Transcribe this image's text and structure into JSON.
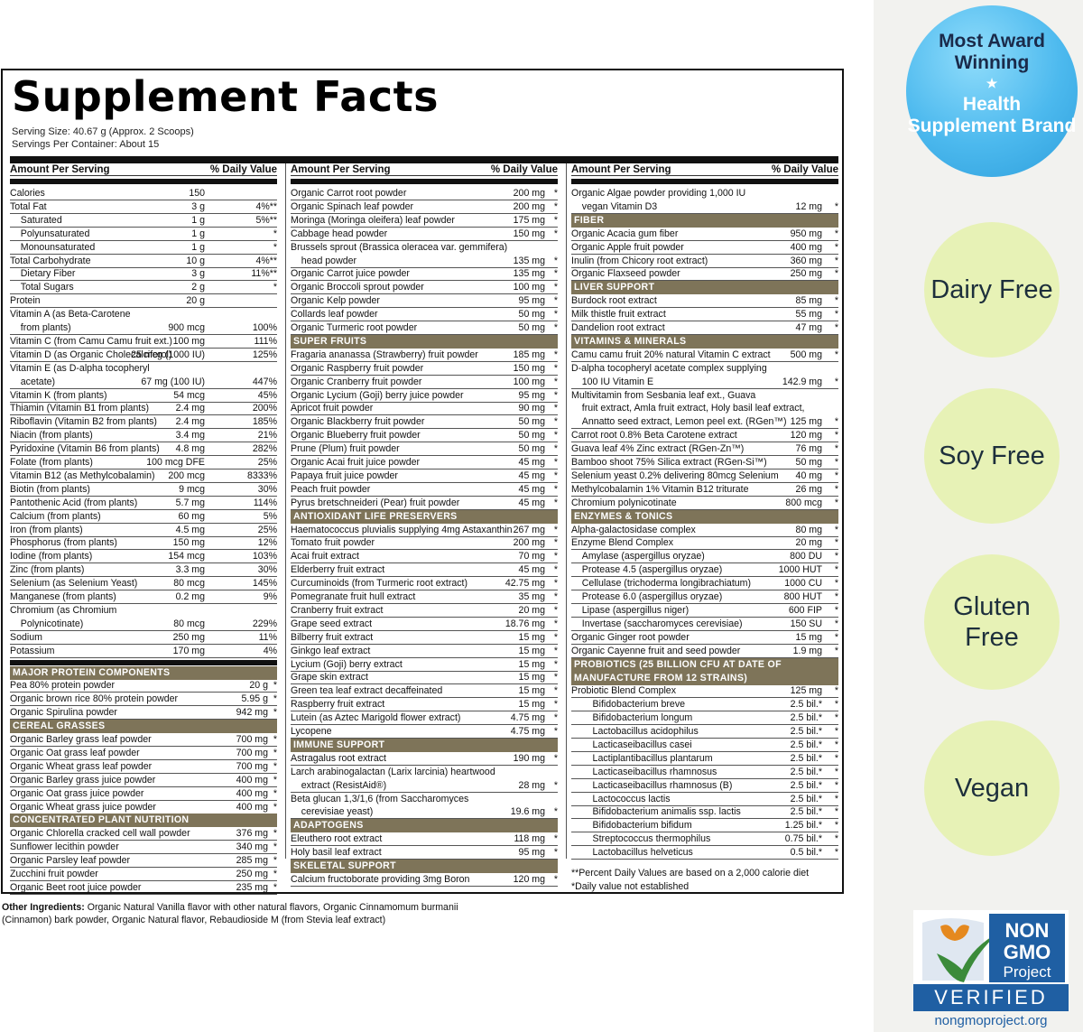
{
  "title": "Supplement Facts",
  "serving_size": "Serving Size: 40.67 g (Approx. 2 Scoops)",
  "servings_per_container": "Servings Per Container: About 15",
  "column_headers": {
    "amount": "Amount Per Serving",
    "dv": "% Daily Value"
  },
  "col1": [
    {
      "n": "Calories",
      "a": "150",
      "d": ""
    },
    {
      "n": "Total Fat",
      "a": "3 g",
      "d": "4%**"
    },
    {
      "n": "  Saturated",
      "a": "1 g",
      "d": "5%**"
    },
    {
      "n": "  Polyunsaturated",
      "a": "1 g",
      "d": "*"
    },
    {
      "n": "  Monounsaturated",
      "a": "1 g",
      "d": "*"
    },
    {
      "n": "Total Carbohydrate",
      "a": "10 g",
      "d": "4%**"
    },
    {
      "n": "  Dietary Fiber",
      "a": "3 g",
      "d": "11%**"
    },
    {
      "n": "  Total Sugars",
      "a": "2 g",
      "d": "*"
    },
    {
      "n": "Protein",
      "a": "20 g",
      "d": ""
    },
    {
      "n": "Vitamin A (as Beta-Carotene",
      "a": "",
      "d": "",
      "cont": true
    },
    {
      "n": "  from plants)",
      "a": "900 mcg",
      "d": "100%"
    },
    {
      "n": "Vitamin C (from Camu Camu fruit ext.)",
      "a": "100 mg",
      "d": "111%"
    },
    {
      "n": "Vitamin D (as Organic Cholecalciferol)",
      "a": "25 mcg (1000 IU)",
      "d": "125%"
    },
    {
      "n": "Vitamin E (as D-alpha tocopheryl",
      "a": "",
      "d": "",
      "cont": true
    },
    {
      "n": "  acetate)",
      "a": "67 mg (100 IU)",
      "d": "447%"
    },
    {
      "n": "Vitamin K (from plants)",
      "a": "54 mcg",
      "d": "45%"
    },
    {
      "n": "Thiamin (Vitamin B1 from plants)",
      "a": "2.4 mg",
      "d": "200%"
    },
    {
      "n": "Riboflavin (Vitamin B2 from plants)",
      "a": "2.4 mg",
      "d": "185%"
    },
    {
      "n": "Niacin (from plants)",
      "a": "3.4 mg",
      "d": "21%"
    },
    {
      "n": "Pyridoxine (Vitamin B6 from plants)",
      "a": "4.8 mg",
      "d": "282%"
    },
    {
      "n": "Folate (from plants)",
      "a": "100 mcg DFE",
      "d": "25%"
    },
    {
      "n": "Vitamin B12 (as Methylcobalamin)",
      "a": "200 mcg",
      "d": "8333%"
    },
    {
      "n": "Biotin (from plants)",
      "a": "9 mcg",
      "d": "30%"
    },
    {
      "n": "Pantothenic Acid (from plants)",
      "a": "5.7 mg",
      "d": "114%"
    },
    {
      "n": "Calcium (from plants)",
      "a": "60 mg",
      "d": "5%"
    },
    {
      "n": "Iron (from plants)",
      "a": "4.5 mg",
      "d": "25%"
    },
    {
      "n": "Phosphorus (from plants)",
      "a": "150 mg",
      "d": "12%"
    },
    {
      "n": "Iodine (from plants)",
      "a": "154 mcg",
      "d": "103%"
    },
    {
      "n": "Zinc (from plants)",
      "a": "3.3 mg",
      "d": "30%"
    },
    {
      "n": "Selenium (as Selenium Yeast)",
      "a": "80 mcg",
      "d": "145%"
    },
    {
      "n": "Manganese (from plants)",
      "a": "0.2 mg",
      "d": "9%"
    },
    {
      "n": "Chromium (as Chromium",
      "a": "",
      "d": "",
      "cont": true
    },
    {
      "n": "  Polynicotinate)",
      "a": "80 mcg",
      "d": "229%"
    },
    {
      "n": "Sodium",
      "a": "250 mg",
      "d": "11%"
    },
    {
      "n": "Potassium",
      "a": "170 mg",
      "d": "4%"
    }
  ],
  "col1b": [
    {
      "sec": "MAJOR PROTEIN COMPONENTS"
    },
    {
      "n": "Pea 80% protein powder",
      "a": "20 g",
      "d": "*"
    },
    {
      "n": "Organic brown rice 80% protein powder",
      "a": "5.95 g",
      "d": "*"
    },
    {
      "n": "Organic Spirulina powder",
      "a": "942 mg",
      "d": "*"
    },
    {
      "sec": "CEREAL GRASSES"
    },
    {
      "n": "Organic Barley grass leaf powder",
      "a": "700 mg",
      "d": "*"
    },
    {
      "n": "Organic Oat grass leaf powder",
      "a": "700 mg",
      "d": "*"
    },
    {
      "n": "Organic Wheat grass leaf powder",
      "a": "700 mg",
      "d": "*"
    },
    {
      "n": "Organic Barley grass juice powder",
      "a": "400 mg",
      "d": "*"
    },
    {
      "n": "Organic Oat grass juice powder",
      "a": "400 mg",
      "d": "*"
    },
    {
      "n": "Organic Wheat grass juice powder",
      "a": "400 mg",
      "d": "*"
    },
    {
      "sec": "CONCENTRATED PLANT NUTRITION"
    },
    {
      "n": "Organic Chlorella cracked cell wall powder",
      "a": "376 mg",
      "d": "*"
    },
    {
      "n": "Sunflower lecithin powder",
      "a": "340 mg",
      "d": "*"
    },
    {
      "n": "Organic Parsley leaf powder",
      "a": "285 mg",
      "d": "*"
    },
    {
      "n": "Zucchini fruit powder",
      "a": "250 mg",
      "d": "*"
    },
    {
      "n": "Organic Beet root juice powder",
      "a": "235 mg",
      "d": "*"
    }
  ],
  "col2": [
    {
      "n": "Organic Carrot root powder",
      "a": "200 mg",
      "d": "*"
    },
    {
      "n": "Organic Spinach leaf powder",
      "a": "200 mg",
      "d": "*"
    },
    {
      "n": "Moringa (Moringa oleifera) leaf powder",
      "a": "175 mg",
      "d": "*"
    },
    {
      "n": "Cabbage head powder",
      "a": "150 mg",
      "d": "*"
    },
    {
      "n": "Brussels sprout (Brassica oleracea var. gemmifera)",
      "a": "",
      "d": "",
      "cont": true
    },
    {
      "n": "  head powder",
      "a": "135 mg",
      "d": "*"
    },
    {
      "n": "Organic Carrot juice powder",
      "a": "135 mg",
      "d": "*"
    },
    {
      "n": "Organic Broccoli sprout powder",
      "a": "100 mg",
      "d": "*"
    },
    {
      "n": "Organic Kelp powder",
      "a": "95 mg",
      "d": "*"
    },
    {
      "n": "Collards leaf powder",
      "a": "50 mg",
      "d": "*"
    },
    {
      "n": "Organic Turmeric root powder",
      "a": "50 mg",
      "d": "*"
    },
    {
      "sec": "SUPER FRUITS"
    },
    {
      "n": "Fragaria ananassa (Strawberry) fruit powder",
      "a": "185 mg",
      "d": "*"
    },
    {
      "n": "Organic Raspberry fruit powder",
      "a": "150 mg",
      "d": "*"
    },
    {
      "n": "Organic Cranberry fruit powder",
      "a": "100 mg",
      "d": "*"
    },
    {
      "n": "Organic Lycium (Goji) berry juice powder",
      "a": "95 mg",
      "d": "*"
    },
    {
      "n": "Apricot fruit powder",
      "a": "90 mg",
      "d": "*"
    },
    {
      "n": "Organic Blackberry fruit powder",
      "a": "50 mg",
      "d": "*"
    },
    {
      "n": "Organic Blueberry fruit powder",
      "a": "50 mg",
      "d": "*"
    },
    {
      "n": "Prune (Plum) fruit powder",
      "a": "50 mg",
      "d": "*"
    },
    {
      "n": "Organic Acai fruit juice powder",
      "a": "45 mg",
      "d": "*"
    },
    {
      "n": "Papaya fruit juice powder",
      "a": "45 mg",
      "d": "*"
    },
    {
      "n": "Peach fruit powder",
      "a": "45 mg",
      "d": "*"
    },
    {
      "n": "Pyrus bretschneideri (Pear) fruit powder",
      "a": "45 mg",
      "d": "*"
    },
    {
      "sec": "ANTIOXIDANT LIFE PRESERVERS"
    },
    {
      "n": "Haematococcus pluvialis supplying 4mg Astaxanthin",
      "a": "267 mg",
      "d": "*"
    },
    {
      "n": "Tomato fruit powder",
      "a": "200 mg",
      "d": "*"
    },
    {
      "n": "Acai fruit extract",
      "a": "70 mg",
      "d": "*"
    },
    {
      "n": "Elderberry fruit extract",
      "a": "45 mg",
      "d": "*"
    },
    {
      "n": "Curcuminoids (from Turmeric root extract)",
      "a": "42.75 mg",
      "d": "*"
    },
    {
      "n": "Pomegranate fruit hull extract",
      "a": "35 mg",
      "d": "*"
    },
    {
      "n": "Cranberry fruit extract",
      "a": "20 mg",
      "d": "*"
    },
    {
      "n": "Grape seed extract",
      "a": "18.76 mg",
      "d": "*"
    },
    {
      "n": "Bilberry fruit extract",
      "a": "15 mg",
      "d": "*"
    },
    {
      "n": "Ginkgo leaf extract",
      "a": "15 mg",
      "d": "*"
    },
    {
      "n": "Lycium (Goji) berry extract",
      "a": "15 mg",
      "d": "*"
    },
    {
      "n": "Grape skin extract",
      "a": "15 mg",
      "d": "*"
    },
    {
      "n": "Green tea leaf extract decaffeinated",
      "a": "15 mg",
      "d": "*"
    },
    {
      "n": "Raspberry fruit extract",
      "a": "15 mg",
      "d": "*"
    },
    {
      "n": "Lutein (as Aztec Marigold flower extract)",
      "a": "4.75 mg",
      "d": "*"
    },
    {
      "n": "Lycopene",
      "a": "4.75 mg",
      "d": "*"
    },
    {
      "sec": "IMMUNE SUPPORT"
    },
    {
      "n": "Astragalus root extract",
      "a": "190 mg",
      "d": "*"
    },
    {
      "n": "Larch arabinogalactan (Larix larcinia) heartwood",
      "a": "",
      "d": "",
      "cont": true
    },
    {
      "n": "  extract (ResistAid®)",
      "a": "28 mg",
      "d": "*"
    },
    {
      "n": "Beta glucan 1,3/1,6 (from Saccharomyces",
      "a": "",
      "d": "",
      "cont": true
    },
    {
      "n": "  cerevisiae yeast)",
      "a": "19.6 mg",
      "d": "*"
    },
    {
      "sec": "ADAPTOGENS"
    },
    {
      "n": "Eleuthero root extract",
      "a": "118 mg",
      "d": "*"
    },
    {
      "n": "Holy basil leaf extract",
      "a": "95 mg",
      "d": "*"
    },
    {
      "sec": "SKELETAL SUPPORT"
    },
    {
      "n": "Calcium fructoborate providing 3mg Boron",
      "a": "120 mg",
      "d": "*"
    }
  ],
  "col3": [
    {
      "n": "Organic Algae powder providing 1,000 IU",
      "a": "",
      "d": "",
      "cont": true
    },
    {
      "n": "  vegan Vitamin D3",
      "a": "12 mg",
      "d": "*"
    },
    {
      "sec": "FIBER"
    },
    {
      "n": "Organic Acacia gum fiber",
      "a": "950 mg",
      "d": "*"
    },
    {
      "n": "Organic Apple fruit powder",
      "a": "400 mg",
      "d": "*"
    },
    {
      "n": "Inulin (from Chicory root extract)",
      "a": "360 mg",
      "d": "*"
    },
    {
      "n": "Organic Flaxseed powder",
      "a": "250 mg",
      "d": "*"
    },
    {
      "sec": "LIVER SUPPORT"
    },
    {
      "n": "Burdock root extract",
      "a": "85 mg",
      "d": "*"
    },
    {
      "n": "Milk thistle fruit extract",
      "a": "55 mg",
      "d": "*"
    },
    {
      "n": "Dandelion root extract",
      "a": "47 mg",
      "d": "*"
    },
    {
      "sec": "VITAMINS & MINERALS"
    },
    {
      "n": "Camu camu fruit 20% natural Vitamin C extract",
      "a": "500 mg",
      "d": "*"
    },
    {
      "n": "D-alpha tocopheryl acetate complex supplying",
      "a": "",
      "d": "",
      "cont": true
    },
    {
      "n": "  100 IU Vitamin E",
      "a": "142.9 mg",
      "d": "*"
    },
    {
      "n": "Multivitamin from Sesbania leaf ext., Guava",
      "a": "",
      "d": "",
      "cont": true
    },
    {
      "n": "  fruit extract, Amla fruit extract, Holy basil leaf extract,",
      "a": "",
      "d": "",
      "cont": true
    },
    {
      "n": "  Annatto seed extract, Lemon peel ext. (RGen™)",
      "a": "125 mg",
      "d": "*"
    },
    {
      "n": "Carrot root 0.8% Beta Carotene extract",
      "a": "120 mg",
      "d": "*"
    },
    {
      "n": "Guava leaf 4% Zinc extract (RGen-Zn™)",
      "a": "76 mg",
      "d": "*"
    },
    {
      "n": "Bamboo shoot 75% Silica extract (RGen-Si™)",
      "a": "50 mg",
      "d": "*"
    },
    {
      "n": "Selenium yeast 0.2% delivering 80mcg Selenium",
      "a": "40 mg",
      "d": "*"
    },
    {
      "n": "Methylcobalamin 1% Vitamin B12 triturate",
      "a": "26 mg",
      "d": "*"
    },
    {
      "n": "Chromium polynicotinate",
      "a": "800 mcg",
      "d": "*"
    },
    {
      "sec": "ENZYMES & TONICS"
    },
    {
      "n": "Alpha-galactosidase complex",
      "a": "80 mg",
      "d": "*"
    },
    {
      "n": "Enzyme Blend Complex",
      "a": "20 mg",
      "d": "*"
    },
    {
      "n": "  Amylase (aspergillus oryzae)",
      "a": "800 DU",
      "d": "*"
    },
    {
      "n": "  Protease 4.5 (aspergillus oryzae)",
      "a": "1000 HUT",
      "d": "*"
    },
    {
      "n": "  Cellulase (trichoderma longibrachiatum)",
      "a": "1000 CU",
      "d": "*"
    },
    {
      "n": "  Protease 6.0 (aspergillus oryzae)",
      "a": "800 HUT",
      "d": "*"
    },
    {
      "n": "  Lipase (aspergillus niger)",
      "a": "600 FIP",
      "d": "*"
    },
    {
      "n": "  Invertase (saccharomyces cerevisiae)",
      "a": "150 SU",
      "d": "*"
    },
    {
      "n": "Organic Ginger root powder",
      "a": "15 mg",
      "d": "*"
    },
    {
      "n": "Organic Cayenne fruit and seed powder",
      "a": "1.9 mg",
      "d": "*"
    },
    {
      "sec": "PROBIOTICS (25 BILLION CFU AT DATE OF MANUFACTURE FROM 12 STRAINS)",
      "two": true
    },
    {
      "n": "Probiotic Blend Complex",
      "a": "125 mg",
      "d": "*"
    },
    {
      "n": "    Bifidobacterium breve",
      "a": "2.5 bil.*",
      "d": "*"
    },
    {
      "n": "    Bifidobacterium longum",
      "a": "2.5 bil.*",
      "d": "*"
    },
    {
      "n": "    Lactobacillus acidophilus",
      "a": "2.5 bil.*",
      "d": "*"
    },
    {
      "n": "    Lacticaseibacillus casei",
      "a": "2.5 bil.*",
      "d": "*"
    },
    {
      "n": "    Lactiplantibacillus plantarum",
      "a": "2.5 bil.*",
      "d": "*"
    },
    {
      "n": "    Lacticaseibacillus rhamnosus",
      "a": "2.5 bil.*",
      "d": "*"
    },
    {
      "n": "    Lacticaseibacillus rhamnosus (B)",
      "a": "2.5 bil.*",
      "d": "*"
    },
    {
      "n": "    Lactococcus lactis",
      "a": "2.5 bil.*",
      "d": "*"
    },
    {
      "n": "    Bifidobacterium animalis ssp. lactis",
      "a": "2.5 bil.*",
      "d": "*"
    },
    {
      "n": "    Bifidobacterium bifidum",
      "a": "1.25 bil.*",
      "d": "*"
    },
    {
      "n": "    Streptococcus thermophilus",
      "a": "0.75 bil.*",
      "d": "*"
    },
    {
      "n": "    Lactobacillus helveticus",
      "a": "0.5 bil.*",
      "d": "*"
    }
  ],
  "footnote1": "**Percent Daily Values are based on a 2,000 calorie diet",
  "footnote2": "*Daily value not established",
  "other_label": "Other Ingredients:",
  "other_text": " Organic Natural Vanilla flavor with other natural flavors, Organic Cinnamomum burmanii (Cinnamon) bark powder, Organic Natural flavor, Rebaudioside M (from Stevia leaf extract)",
  "award": {
    "line1": "Most Award Winning",
    "line2": "Health Supplement Brand"
  },
  "badges": [
    "Dairy Free",
    "Soy Free",
    "Gluten Free",
    "Vegan"
  ],
  "nongmo": {
    "non": "NON",
    "gmo": "GMO",
    "project": "Project",
    "verified": "VERIFIED",
    "url": "nongmoproject.org"
  },
  "colors": {
    "section": "#7e7459",
    "award": "#4cb9ee",
    "badge": "#e7f2b6",
    "nongmo_blue": "#1f5fa3"
  }
}
